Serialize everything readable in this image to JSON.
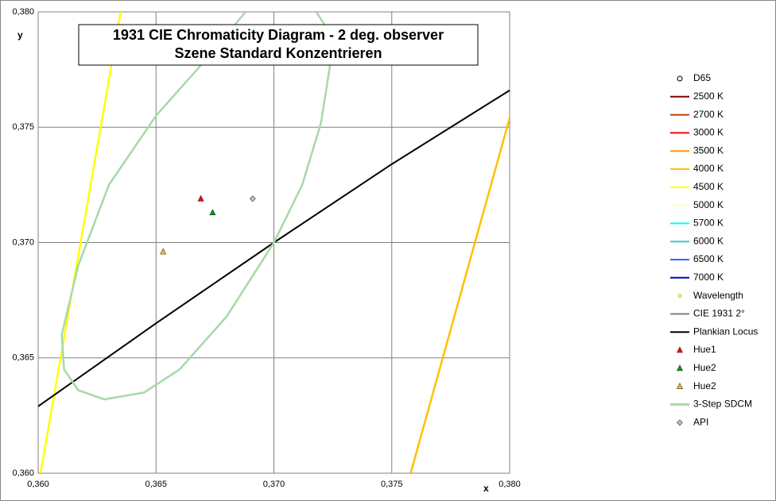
{
  "chart_data": {
    "type": "scatter",
    "title": [
      "1931 CIE Chromaticity Diagram - 2 deg. observer",
      "Szene Standard Konzentrieren"
    ],
    "xlabel": "x",
    "ylabel": "y",
    "xlim": [
      0.36,
      0.38
    ],
    "ylim": [
      0.36,
      0.38
    ],
    "xticks": [
      {
        "value": 0.36,
        "label": "0,360"
      },
      {
        "value": 0.365,
        "label": "0,365"
      },
      {
        "value": 0.37,
        "label": "0,370"
      },
      {
        "value": 0.375,
        "label": "0,375"
      },
      {
        "value": 0.38,
        "label": "0,380"
      }
    ],
    "yticks": [
      {
        "value": 0.36,
        "label": "0,360"
      },
      {
        "value": 0.365,
        "label": "0,365"
      },
      {
        "value": 0.37,
        "label": "0,370"
      },
      {
        "value": 0.375,
        "label": "0,375"
      },
      {
        "value": 0.38,
        "label": "0,380"
      }
    ],
    "grid": true,
    "legend": "right",
    "series": [
      {
        "name": "D65",
        "color": "#000000",
        "kind": "marker",
        "marker": "circle",
        "x": [],
        "y": []
      },
      {
        "name": "2500 K",
        "color": "#7f0000",
        "kind": "line",
        "x": [],
        "y": []
      },
      {
        "name": "2700 K",
        "color": "#c04000",
        "kind": "line",
        "x": [],
        "y": []
      },
      {
        "name": "3000 K",
        "color": "#ff0000",
        "kind": "line",
        "x": [],
        "y": []
      },
      {
        "name": "3500 K",
        "color": "#ff9900",
        "kind": "line",
        "x": [],
        "y": []
      },
      {
        "name": "4000 K",
        "color": "#ffc000",
        "kind": "line",
        "x": [
          0.3758,
          0.38
        ],
        "y": [
          0.36,
          0.3754
        ]
      },
      {
        "name": "4500 K",
        "color": "#ffff00",
        "kind": "line",
        "x": [
          0.3601,
          0.3635
        ],
        "y": [
          0.36,
          0.38
        ]
      },
      {
        "name": "5000 K",
        "color": "#ffffc0",
        "kind": "line",
        "x": [],
        "y": []
      },
      {
        "name": "5700 K",
        "color": "#00ffff",
        "kind": "line",
        "x": [],
        "y": []
      },
      {
        "name": "6000 K",
        "color": "#33cccc",
        "kind": "line",
        "x": [],
        "y": []
      },
      {
        "name": "6500 K",
        "color": "#3366ff",
        "kind": "line",
        "x": [],
        "y": []
      },
      {
        "name": "7000 K",
        "color": "#0000cc",
        "kind": "line",
        "x": [],
        "y": []
      },
      {
        "name": "Wavelength",
        "color": "#99cc00",
        "kind": "marker",
        "marker": "dot",
        "x": [],
        "y": []
      },
      {
        "name": "CIE 1931 2°",
        "color": "#808080",
        "kind": "line",
        "x": [],
        "y": []
      },
      {
        "name": "Plankian Locus",
        "color": "#000000",
        "kind": "line",
        "x": [
          0.36,
          0.365,
          0.37,
          0.375,
          0.38
        ],
        "y": [
          0.3629,
          0.3665,
          0.37,
          0.3734,
          0.3766
        ]
      },
      {
        "name": "Hue1",
        "color": "#ff0000",
        "kind": "marker",
        "marker": "triangle",
        "x": [
          0.3669
        ],
        "y": [
          0.3719
        ]
      },
      {
        "name": "Hue2",
        "color": "#00a000",
        "kind": "marker",
        "marker": "triangle",
        "x": [
          0.3674
        ],
        "y": [
          0.3713
        ]
      },
      {
        "name": "Hue2",
        "color": "#ffc000",
        "kind": "marker",
        "marker": "triangle",
        "x": [
          0.3653
        ],
        "y": [
          0.3696
        ]
      },
      {
        "name": "3-Step SDCM",
        "color": "#a8d8a8",
        "kind": "line",
        "x": [
          0.3688,
          0.367,
          0.365,
          0.363,
          0.3617,
          0.361,
          0.3611,
          0.3617,
          0.3628,
          0.3645,
          0.366,
          0.368,
          0.37,
          0.3712,
          0.372,
          0.3724,
          0.3723,
          0.3718
        ],
        "y": [
          0.38,
          0.3778,
          0.3755,
          0.3725,
          0.369,
          0.366,
          0.3645,
          0.3636,
          0.3632,
          0.3635,
          0.3645,
          0.3668,
          0.37,
          0.3725,
          0.3752,
          0.3778,
          0.3792,
          0.38
        ]
      },
      {
        "name": "API",
        "color": "#c0c0c0",
        "kind": "marker",
        "marker": "diamond",
        "x": [
          0.3691
        ],
        "y": [
          0.3719
        ]
      }
    ]
  }
}
